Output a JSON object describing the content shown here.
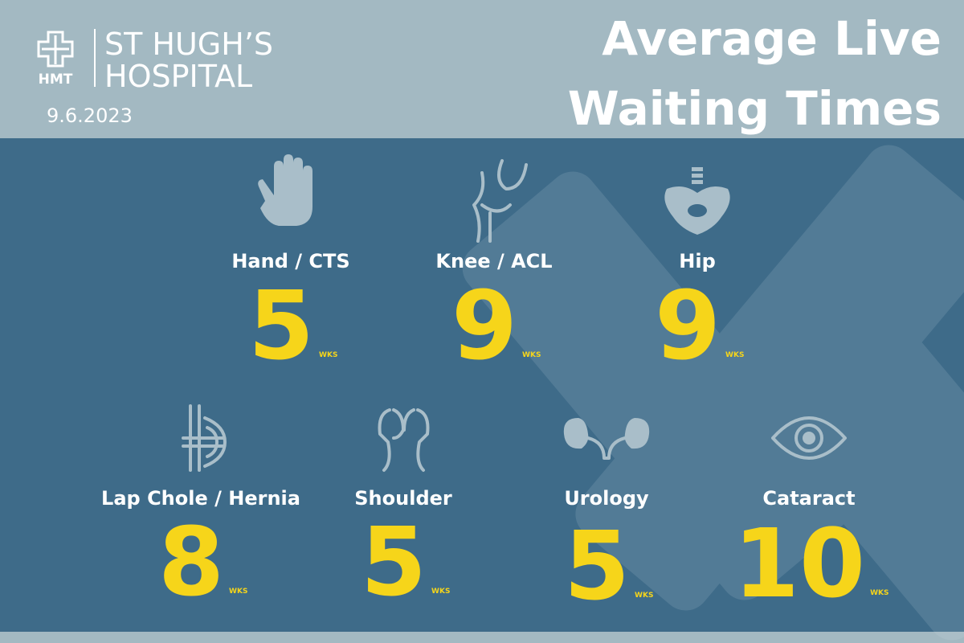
{
  "header": {
    "logo_mark": "HMT",
    "name_lines": [
      "ST HUGH’S",
      "HOSPITAL"
    ],
    "date": "9.6.2023",
    "title_lines": [
      "Average Live",
      "Waiting Times"
    ]
  },
  "items": [
    {
      "label": "Hand / CTS",
      "value": 5,
      "unit": "WKS"
    },
    {
      "label": "Knee / ACL",
      "value": 9,
      "unit": "WKS"
    },
    {
      "label": "Hip",
      "value": 9,
      "unit": "WKS"
    },
    {
      "label": "Lap Chole / Hernia",
      "value": 8,
      "unit": "WKS"
    },
    {
      "label": "Shoulder",
      "value": 5,
      "unit": "WKS"
    },
    {
      "label": "Urology",
      "value": 5,
      "unit": "WKS"
    },
    {
      "label": "Cataract",
      "value": 10,
      "unit": "WKS"
    }
  ]
}
